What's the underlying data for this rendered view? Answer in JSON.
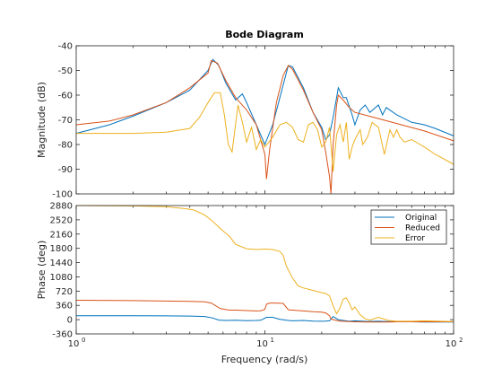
{
  "chart_data": {
    "type": "line",
    "title": "Bode Diagram",
    "xlabel": "Frequency  (rad/s)",
    "x_scale": "log",
    "xlim": [
      1,
      100
    ],
    "x_ticks": [
      1,
      10,
      100
    ],
    "x_tick_labels": [
      "10",
      "10",
      "10"
    ],
    "x_tick_exponents": [
      "0",
      "1",
      "2"
    ],
    "colors": {
      "Original": "#0072BD",
      "Reduced": "#D95319",
      "Error": "#EDB120"
    },
    "legend_position": "top-right (phase panel)",
    "panels": [
      {
        "name": "magnitude",
        "ylabel": "Magnitude (dB)",
        "ylim": [
          -100,
          -40
        ],
        "y_ticks": [
          -100,
          -90,
          -80,
          -70,
          -60,
          -50,
          -40
        ],
        "series": [
          {
            "name": "Original",
            "x": [
              1,
              1.5,
              2,
              3,
              4,
              5,
              5.3,
              5.7,
              6.2,
              7,
              7.6,
              8,
              9,
              10,
              11,
              12,
              13.3,
              14,
              16,
              18,
              20,
              21,
              22,
              23,
              24.5,
              26,
              27,
              29,
              30,
              32,
              34,
              36,
              40,
              42,
              44,
              50,
              60,
              70,
              80,
              100
            ],
            "y": [
              -75.5,
              -72,
              -68.5,
              -63,
              -58,
              -50,
              -45.5,
              -48,
              -55,
              -62,
              -59.5,
              -63,
              -72,
              -80,
              -72,
              -61,
              -48,
              -48.5,
              -57,
              -67,
              -73,
              -78,
              -76,
              -69,
              -57,
              -61,
              -61,
              -68,
              -72,
              -66,
              -64,
              -67,
              -64,
              -68,
              -65,
              -68,
              -71,
              -72,
              -73.5,
              -76.5
            ]
          },
          {
            "name": "Reduced",
            "x": [
              1,
              1.5,
              2,
              3,
              4,
              5,
              5.2,
              5.6,
              6.2,
              7,
              8,
              9,
              10,
              10.2,
              10.6,
              11.5,
              12.5,
              13.3,
              14,
              16,
              18,
              20,
              21,
              22,
              22.4,
              23,
              24,
              24.5,
              26,
              28,
              30,
              40,
              50,
              70,
              100
            ],
            "y": [
              -72,
              -70.5,
              -68,
              -63,
              -57,
              -51,
              -46,
              -47,
              -54,
              -61,
              -66,
              -72,
              -84,
              -94,
              -82,
              -63,
              -52,
              -48,
              -49.5,
              -58,
              -67,
              -74,
              -83,
              -93,
              -100,
              -80,
              -64,
              -60,
              -62,
              -65,
              -67,
              -69.5,
              -71.5,
              -74.5,
              -78.5
            ]
          },
          {
            "name": "Error",
            "x": [
              1,
              2,
              3,
              4,
              4.5,
              5,
              5.4,
              5.8,
              6.1,
              6.4,
              6.7,
              7.2,
              7.6,
              8,
              8.5,
              9,
              9.5,
              10,
              11,
              12,
              13,
              14,
              15,
              16,
              17,
              18,
              19,
              20,
              21,
              22,
              22.5,
              23,
              24,
              25,
              26,
              27,
              28,
              29,
              30,
              32,
              33,
              35,
              37,
              40,
              43,
              46,
              48,
              50,
              52,
              55,
              60,
              70,
              80,
              100
            ],
            "y": [
              -75.5,
              -75.5,
              -75,
              -73.5,
              -69,
              -63,
              -59,
              -59,
              -68,
              -80,
              -83,
              -64,
              -71,
              -79,
              -73,
              -82,
              -78,
              -81,
              -77,
              -72,
              -71,
              -73,
              -78,
              -79,
              -72,
              -71,
              -74,
              -81,
              -79,
              -73,
              -82,
              -91,
              -76,
              -72,
              -79,
              -71,
              -86,
              -81,
              -78,
              -74,
              -80,
              -77,
              -71,
              -73,
              -84,
              -74,
              -77,
              -74,
              -77,
              -79,
              -78,
              -81,
              -84,
              -88
            ]
          }
        ]
      },
      {
        "name": "phase",
        "ylabel": "Phase (deg)",
        "ylim": [
          -360,
          2880
        ],
        "y_ticks": [
          -360,
          0,
          360,
          720,
          1080,
          1440,
          1800,
          2160,
          2520,
          2880
        ],
        "series": [
          {
            "name": "Original",
            "x": [
              1,
              2,
              3,
              4,
              4.8,
              5.3,
              5.7,
              6.2,
              7,
              8,
              9,
              9.5,
              10.2,
              11,
              12,
              13.3,
              14,
              16,
              18,
              20,
              21,
              22,
              23,
              24.5,
              26,
              28,
              30,
              35,
              40,
              45,
              50,
              60,
              70,
              100
            ],
            "y": [
              100,
              98,
              95,
              92,
              80,
              40,
              -10,
              -20,
              -15,
              -25,
              -20,
              -15,
              60,
              60,
              10,
              -20,
              -30,
              -20,
              -35,
              -40,
              -35,
              -30,
              80,
              0,
              -20,
              -40,
              -30,
              -45,
              -40,
              -50,
              -45,
              -55,
              -60,
              -60
            ]
          },
          {
            "name": "Reduced",
            "x": [
              1,
              2,
              3,
              4,
              4.8,
              5.2,
              5.8,
              6.5,
              7,
              8,
              9,
              9.5,
              10,
              10.2,
              10.6,
              11.5,
              12.5,
              13.3,
              14,
              16,
              18,
              20,
              21,
              22,
              22.4,
              23,
              24,
              25,
              26,
              28,
              30,
              35,
              40,
              45,
              50,
              60,
              70,
              100
            ],
            "y": [
              490,
              480,
              470,
              460,
              450,
              420,
              280,
              240,
              240,
              230,
              220,
              225,
              260,
              390,
              420,
              420,
              410,
              250,
              240,
              220,
              200,
              190,
              170,
              100,
              20,
              0,
              -20,
              -40,
              -40,
              -50,
              -55,
              -60,
              -60,
              -60,
              -55,
              -55,
              -55,
              -55
            ]
          },
          {
            "name": "Error",
            "x": [
              1,
              2,
              3,
              3.8,
              4.2,
              4.8,
              5.3,
              5.8,
              6.5,
              7,
              8,
              9,
              10,
              11,
              12,
              12.5,
              13,
              14,
              15,
              16,
              18,
              20,
              21,
              22,
              23,
              24,
              25,
              26,
              27,
              28,
              29,
              30,
              32,
              34,
              36,
              40,
              45,
              50,
              60,
              70,
              100
            ],
            "y": [
              2880,
              2870,
              2850,
              2800,
              2770,
              2640,
              2480,
              2300,
              2100,
              1900,
              1790,
              1770,
              1780,
              1770,
              1720,
              1620,
              1350,
              1050,
              850,
              800,
              740,
              680,
              660,
              600,
              350,
              150,
              300,
              520,
              550,
              420,
              250,
              320,
              120,
              20,
              -10,
              60,
              -20,
              -40,
              -40,
              -30,
              -50
            ]
          }
        ]
      }
    ],
    "legend": [
      "Original",
      "Reduced",
      "Error"
    ]
  }
}
